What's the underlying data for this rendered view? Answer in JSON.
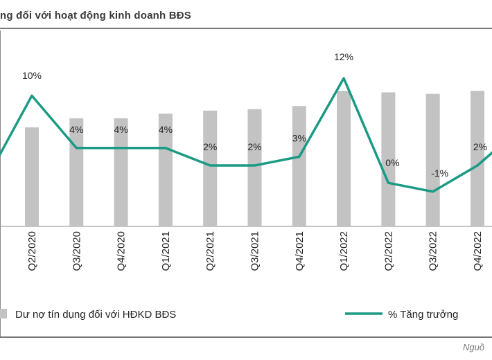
{
  "title": "ng đối với hoạt động kinh doanh BĐS",
  "source": "Nguồ",
  "chart_data": {
    "type": "bar",
    "categories": [
      "Q2/2020",
      "Q3/2020",
      "Q4/2020",
      "Q1/2021",
      "Q2/2021",
      "Q3/2021",
      "Q4/2021",
      "Q1/2022",
      "Q2/2022",
      "Q3/2022",
      "Q4/2022"
    ],
    "series": [
      {
        "name": "Dư nợ tín dụng đối với HĐKD BĐS",
        "kind": "bar",
        "values": [
          0.65,
          0.71,
          0.71,
          0.74,
          0.76,
          0.77,
          0.79,
          0.89,
          0.88,
          0.87,
          0.89
        ]
      },
      {
        "name": "% Tăng trưởng",
        "kind": "line",
        "values": [
          10,
          4,
          4,
          4,
          2,
          2,
          3,
          12,
          0,
          -1,
          2
        ],
        "labels": [
          "10%",
          "4%",
          "4%",
          "4%",
          "2%",
          "2%",
          "3%",
          "12%",
          "0%",
          "-1%",
          "2%"
        ]
      }
    ],
    "line_edges": {
      "left": 3,
      "right": 4
    },
    "legend_position": "bottom",
    "grid": false,
    "colors": {
      "bar": "#c3c3c3",
      "line": "#1b9a84",
      "axis": "#888888",
      "rule": "#777777"
    }
  }
}
